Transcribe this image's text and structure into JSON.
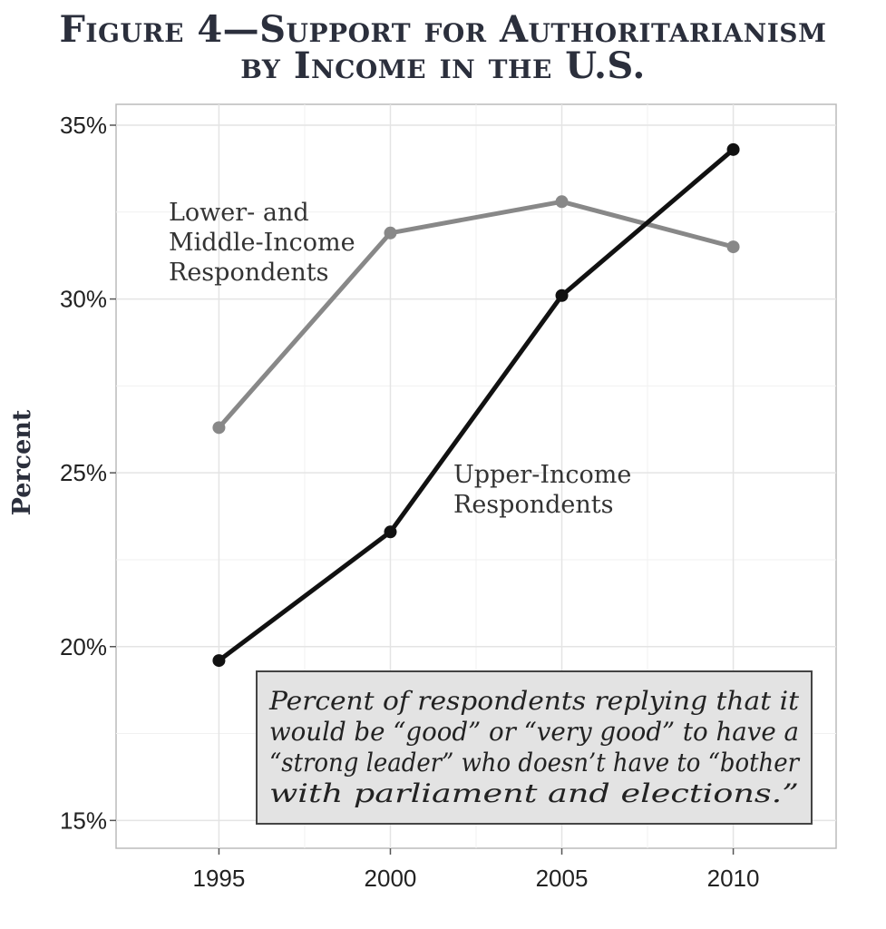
{
  "title": {
    "line1": "Figure 4—Support for Authoritarianism",
    "line2": "by Income in the U.S."
  },
  "chart_data": {
    "type": "line",
    "title": "Figure 4—Support for Authoritarianism by Income in the U.S.",
    "xlabel": "",
    "ylabel": "Percent",
    "x": [
      1995,
      2000,
      2005,
      2010
    ],
    "xlim": [
      1992,
      2013
    ],
    "ylim": [
      14.2,
      35.6
    ],
    "yticks": [
      15,
      20,
      25,
      30,
      35
    ],
    "ytick_labels": [
      "15%",
      "20%",
      "25%",
      "30%",
      "35%"
    ],
    "xtick_labels": [
      "1995",
      "2000",
      "2005",
      "2010"
    ],
    "grid": true,
    "series": [
      {
        "name": "Lower- and Middle-Income Respondents",
        "label_lines": [
          "Lower- and",
          "Middle-Income",
          "Respondents"
        ],
        "values": [
          26.3,
          31.9,
          32.8,
          31.5
        ],
        "color": "#888888"
      },
      {
        "name": "Upper-Income Respondents",
        "label_lines": [
          "Upper-Income",
          "Respondents"
        ],
        "values": [
          19.6,
          23.3,
          30.1,
          34.3
        ],
        "color": "#111111"
      }
    ],
    "annotation": {
      "lines": [
        "Percent of respondents replying that it",
        "would be “good” or “very good” to have a",
        "“strong leader” who doesn’t have to “bother",
        "with parliament and elections.”"
      ],
      "background": "#e3e3e3"
    }
  }
}
